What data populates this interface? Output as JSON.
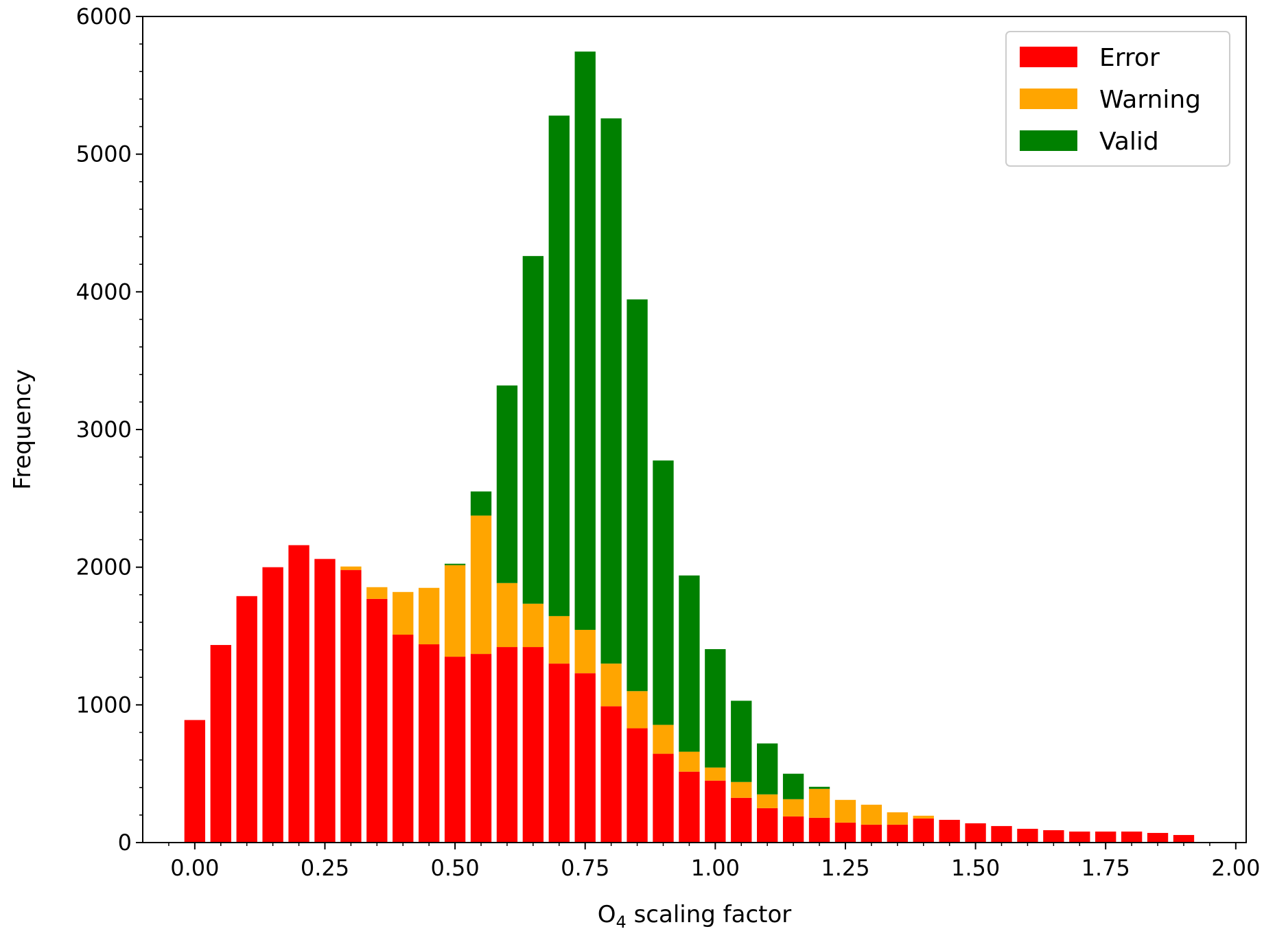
{
  "chart_data": {
    "type": "bar",
    "stacked": true,
    "xlabel_main": "O",
    "xlabel_sub": "4",
    "xlabel_rest": " scaling factor",
    "ylabel": "Frequency",
    "xlim": [
      -0.1,
      2.02
    ],
    "ylim": [
      0,
      6000
    ],
    "bin_width": 0.05,
    "bar_width": 0.04,
    "xticks": [
      "0.00",
      "0.25",
      "0.50",
      "0.75",
      "1.00",
      "1.25",
      "1.50",
      "1.75",
      "2.00"
    ],
    "xtick_values": [
      0,
      0.25,
      0.5,
      0.75,
      1.0,
      1.25,
      1.5,
      1.75,
      2.0
    ],
    "yticks": [
      "0",
      "1000",
      "2000",
      "3000",
      "4000",
      "5000",
      "6000"
    ],
    "ytick_values": [
      0,
      1000,
      2000,
      3000,
      4000,
      5000,
      6000
    ],
    "legend_position": "top-right",
    "x": [
      0.0,
      0.05,
      0.1,
      0.15,
      0.2,
      0.25,
      0.3,
      0.35,
      0.4,
      0.45,
      0.5,
      0.55,
      0.6,
      0.65,
      0.7,
      0.75,
      0.8,
      0.85,
      0.9,
      0.95,
      1.0,
      1.05,
      1.1,
      1.15,
      1.2,
      1.25,
      1.3,
      1.35,
      1.4,
      1.45,
      1.5,
      1.55,
      1.6,
      1.65,
      1.7,
      1.75,
      1.8,
      1.85,
      1.9
    ],
    "series": [
      {
        "name": "Error",
        "color": "#ff0000",
        "values": [
          890,
          1435,
          1790,
          2000,
          2160,
          2060,
          1980,
          1770,
          1510,
          1440,
          1350,
          1370,
          1420,
          1420,
          1300,
          1230,
          990,
          830,
          645,
          515,
          450,
          325,
          250,
          190,
          180,
          145,
          130,
          130,
          175,
          165,
          140,
          120,
          100,
          90,
          80,
          80,
          80,
          70,
          55
        ]
      },
      {
        "name": "Warning",
        "color": "#ffa500",
        "values": [
          0,
          0,
          0,
          0,
          0,
          0,
          25,
          85,
          310,
          410,
          665,
          1005,
          465,
          315,
          345,
          315,
          310,
          270,
          210,
          145,
          95,
          115,
          100,
          125,
          210,
          165,
          145,
          90,
          20,
          0,
          0,
          0,
          0,
          0,
          0,
          0,
          0,
          0,
          0
        ]
      },
      {
        "name": "Valid",
        "color": "#008000",
        "values": [
          0,
          0,
          0,
          0,
          0,
          0,
          0,
          0,
          0,
          0,
          10,
          175,
          1435,
          2525,
          3635,
          4200,
          3960,
          2845,
          1920,
          1280,
          860,
          590,
          370,
          185,
          15,
          0,
          0,
          0,
          0,
          0,
          0,
          0,
          0,
          0,
          0,
          0,
          0,
          0,
          0
        ]
      }
    ]
  }
}
